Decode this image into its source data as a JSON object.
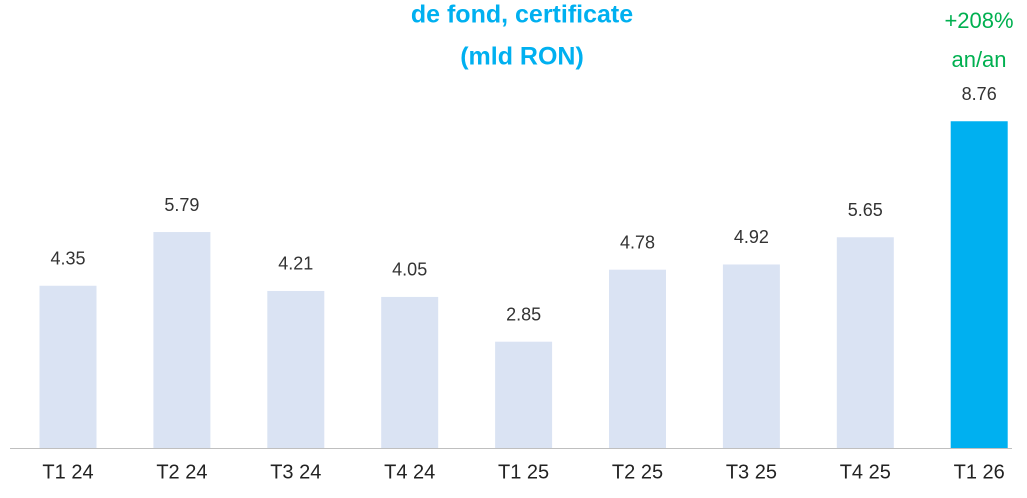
{
  "chart_data": {
    "type": "bar",
    "title_lines": [
      "de fond, certificate",
      "(mld RON)"
    ],
    "annotation_lines": [
      "+208%",
      "an/an"
    ],
    "categories": [
      "T1 24",
      "T2 24",
      "T3 24",
      "T4 24",
      "T1 25",
      "T2 25",
      "T3 25",
      "T4 25",
      "T1 26"
    ],
    "values": [
      4.35,
      5.79,
      4.21,
      4.05,
      2.85,
      4.78,
      4.92,
      5.65,
      8.76
    ],
    "colors": [
      "#dae3f3",
      "#dae3f3",
      "#dae3f3",
      "#dae3f3",
      "#dae3f3",
      "#dae3f3",
      "#dae3f3",
      "#dae3f3",
      "#00b0f0"
    ],
    "annotation_color": "#00b050"
  }
}
